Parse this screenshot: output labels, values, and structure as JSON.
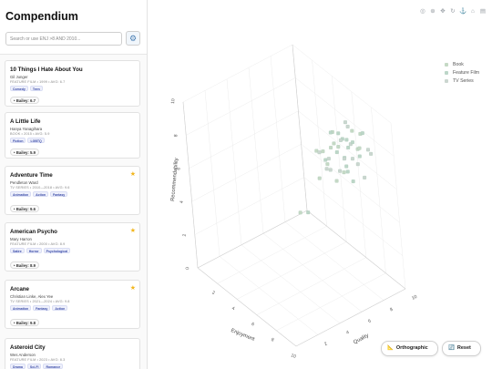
{
  "sidebar": {
    "title": "Compendium",
    "search_placeholder": "Search or use ENJ >8 AND 2010...",
    "settings_icon": "gear-icon",
    "cards": [
      {
        "title": "10 Things I Hate About You",
        "author": "Gil Junger",
        "meta": "FEATURE FILM • 1999 • AVG: 6.7",
        "tags": [
          "Comedy",
          "Teen"
        ],
        "score": "Bailey: 6.7",
        "starred": false
      },
      {
        "title": "A Little Life",
        "author": "Hanya Yanagihara",
        "meta": "BOOK • 2015 • AVG: 5.9",
        "tags": [
          "Fiction",
          "LGBTQ"
        ],
        "score": "Bailey: 5.9",
        "starred": false
      },
      {
        "title": "Adventure Time",
        "author": "Pendleton Ward",
        "meta": "TV SERIES • 2010—2018 • AVG: 9.6",
        "tags": [
          "Animation",
          "Action",
          "Fantasy"
        ],
        "score": "Bailey: 9.6",
        "starred": true
      },
      {
        "title": "American Psycho",
        "author": "Mary Harron",
        "meta": "FEATURE FILM • 2000 • AVG: 8.9",
        "tags": [
          "Satire",
          "Horror",
          "Psychological"
        ],
        "score": "Bailey: 8.9",
        "starred": true
      },
      {
        "title": "Arcane",
        "author": "Christian Linke, Alex Yee",
        "meta": "TV SERIES • 2021—2024 • AVG: 9.8",
        "tags": [
          "Animation",
          "Fantasy",
          "Action"
        ],
        "score": "Bailey: 9.8",
        "starred": true
      },
      {
        "title": "Asteroid City",
        "author": "Wes Anderson",
        "meta": "FEATURE FILM • 2023 • AVG: 8.3",
        "tags": [
          "Drama",
          "Sci-Fi",
          "Romance"
        ],
        "score": "",
        "starred": false
      }
    ]
  },
  "modebar": {
    "icons": [
      "camera-icon",
      "zoom-icon",
      "pan-icon",
      "orbit-icon",
      "turntable-icon",
      "home-icon",
      "plotly-logo-icon"
    ]
  },
  "legend": {
    "items": [
      {
        "label": "Book",
        "color": "#c5d9c5"
      },
      {
        "label": "Feature Film",
        "color": "#bcd6c8"
      },
      {
        "label": "TV Series",
        "color": "#cbd6d0"
      }
    ]
  },
  "buttons": {
    "orthographic": "Orthographic",
    "orthographic_icon": "ruler-icon",
    "reset": "Reset",
    "reset_icon": "reset-icon"
  },
  "chart_data": {
    "type": "scatter",
    "title": "",
    "axes": {
      "x": {
        "label": "Enjoyment",
        "ticks": [
          "2",
          "4",
          "6",
          "8",
          "10"
        ]
      },
      "y": {
        "label": "Quality",
        "ticks": [
          "0",
          "2",
          "4",
          "6",
          "8",
          "10"
        ]
      },
      "z": {
        "label": "Recommendability",
        "ticks": [
          "0",
          "2",
          "4",
          "6",
          "8",
          "10"
        ]
      }
    },
    "legend_position": "top-right",
    "grid": true,
    "series": [
      {
        "name": "Book",
        "color": "#c5d9c5"
      },
      {
        "name": "Feature Film",
        "color": "#bcd6c8"
      },
      {
        "name": "TV Series",
        "color": "#cbd6d0"
      }
    ],
    "points": [
      [
        7.2,
        6.8,
        8.3
      ],
      [
        7.8,
        7.4,
        8.9
      ],
      [
        8.1,
        7.0,
        9.1
      ],
      [
        6.9,
        7.7,
        7.9
      ],
      [
        7.5,
        8.0,
        8.5
      ],
      [
        8.4,
        7.6,
        8.8
      ],
      [
        8.8,
        8.2,
        9.4
      ],
      [
        7.0,
        6.4,
        7.6
      ],
      [
        6.5,
        7.1,
        7.2
      ],
      [
        8.0,
        8.5,
        8.0
      ],
      [
        8.6,
        6.9,
        7.8
      ],
      [
        7.7,
        6.2,
        7.4
      ],
      [
        7.3,
        8.7,
        8.7
      ],
      [
        8.9,
        7.9,
        8.2
      ],
      [
        6.8,
        6.6,
        6.9
      ],
      [
        7.9,
        7.2,
        7.0
      ],
      [
        8.3,
        8.8,
        9.0
      ],
      [
        7.1,
        7.5,
        6.6
      ],
      [
        6.2,
        7.9,
        7.7
      ],
      [
        8.7,
        7.3,
        6.8
      ],
      [
        7.6,
        8.3,
        7.3
      ],
      [
        6.6,
        6.0,
        8.1
      ],
      [
        8.2,
        6.5,
        8.6
      ],
      [
        9.0,
        8.6,
        8.4
      ],
      [
        7.4,
        6.9,
        9.3
      ],
      [
        6.4,
        8.2,
        8.3
      ],
      [
        8.5,
        8.0,
        7.5
      ],
      [
        7.8,
        5.9,
        7.9
      ],
      [
        6.7,
        7.3,
        8.8
      ],
      [
        8.0,
        7.8,
        9.6
      ],
      [
        9.2,
        7.7,
        8.9
      ],
      [
        7.2,
        8.1,
        6.4
      ],
      [
        5.9,
        6.8,
        7.4
      ],
      [
        8.4,
        6.1,
        7.1
      ],
      [
        7.0,
        8.9,
        7.8
      ],
      [
        8.9,
        8.9,
        8.0
      ],
      [
        6.3,
        6.3,
        6.2
      ],
      [
        7.6,
        7.6,
        7.6
      ],
      [
        8.2,
        7.1,
        8.0
      ],
      [
        7.3,
        6.0,
        8.4
      ],
      [
        9.1,
        6.8,
        9.2
      ],
      [
        6.9,
        8.5,
        9.1
      ],
      [
        5.5,
        5.0,
        4.2
      ],
      [
        4.6,
        6.4,
        3.3
      ],
      [
        8.6,
        8.4,
        6.6
      ]
    ]
  }
}
